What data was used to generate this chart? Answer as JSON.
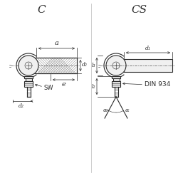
{
  "bg_color": "#ffffff",
  "line_color": "#2a2a2a",
  "dim_color": "#2a2a2a",
  "title_C": "C",
  "title_CS": "CS",
  "label_a": "a",
  "label_e": "e",
  "label_d1": "d₁",
  "label_d2": "d₂",
  "label_SW": "SW",
  "label_l2": "l₂",
  "label_l3": "l₃",
  "label_alpha": "α",
  "label_din": "DIN 934"
}
